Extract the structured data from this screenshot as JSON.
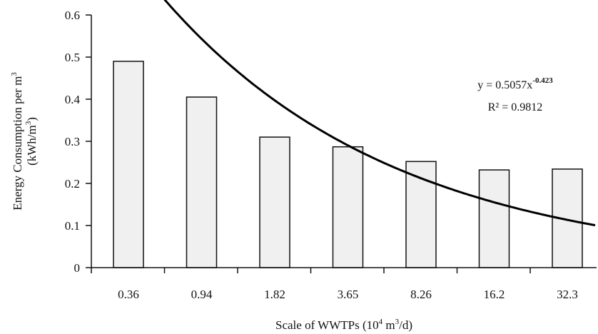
{
  "chart_data": {
    "type": "bar",
    "categories": [
      "0.36",
      "0.94",
      "1.82",
      "3.65",
      "8.26",
      "16.2",
      "32.3"
    ],
    "values": [
      0.49,
      0.405,
      0.31,
      0.287,
      0.252,
      0.232,
      0.234
    ],
    "x_numeric": [
      0.36,
      0.94,
      1.82,
      3.65,
      8.26,
      16.2,
      32.3
    ],
    "ylim": [
      0,
      0.6
    ],
    "yticks": [
      0,
      0.1,
      0.2,
      0.3,
      0.4,
      0.5,
      0.6
    ],
    "ytick_labels": [
      "0",
      "0.1",
      "0.2",
      "0.3",
      "0.4",
      "0.5",
      "0.6"
    ],
    "xlabel": {
      "main": "Scale of WWTPs (10",
      "sup1": "4",
      "mid": " m",
      "sup2": "3",
      "end": "/d)"
    },
    "ylabel": {
      "line1_main": "Energy Consumption per m",
      "line1_sup": "3",
      "line2_main": "(kWh/m",
      "line2_sup": "3",
      "line2_end": ")"
    },
    "grid": false,
    "bar_fill": "#f0f0f0",
    "bar_stroke": "#111111",
    "curve_color": "#000000",
    "trendline": {
      "type": "power",
      "a": 0.5057,
      "b": -0.423,
      "equation_main": "y = 0.5057x",
      "equation_exp": "-0.423",
      "r2_text": "R² = 0.9812"
    }
  }
}
